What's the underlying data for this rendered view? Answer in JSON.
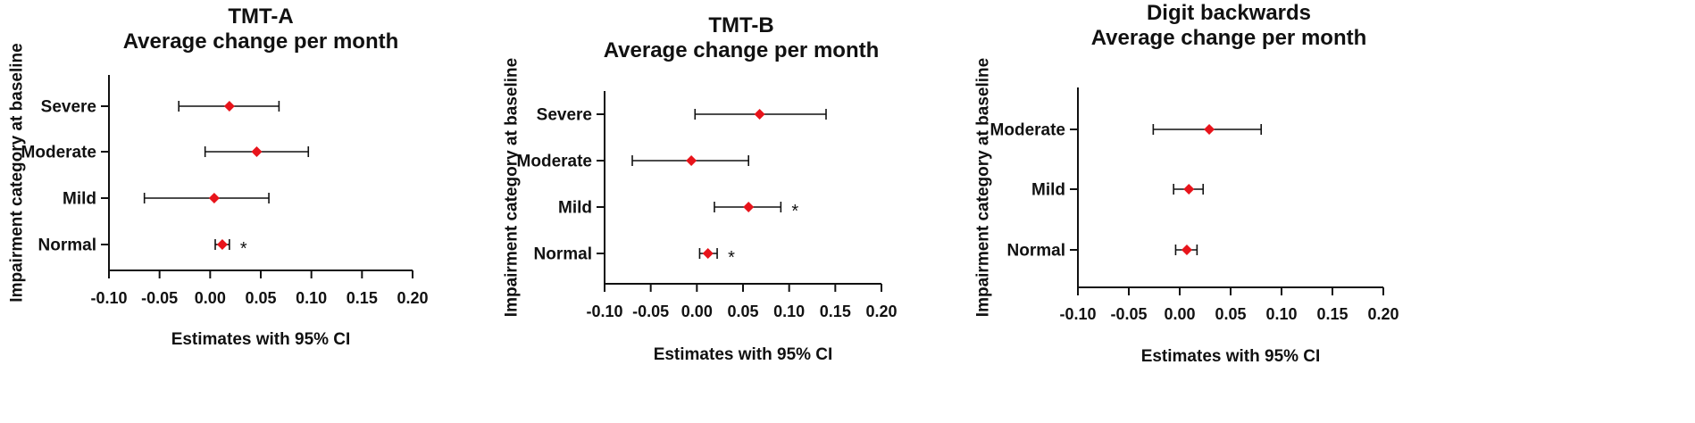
{
  "chart_data": [
    {
      "type": "forest",
      "title_lines": [
        "TMT-A",
        "Average change per month"
      ],
      "xlabel": "Estimates with 95% CI",
      "ylabel": "Impairment category at baseline",
      "xlim": [
        -0.1,
        0.2
      ],
      "xticks": [
        "-0.10",
        "-0.05",
        "0.00",
        "0.05",
        "0.10",
        "0.15",
        "0.20"
      ],
      "categories": [
        "Severe",
        "Moderate",
        "Mild",
        "Normal"
      ],
      "estimates": [
        0.019,
        0.046,
        0.004,
        0.012
      ],
      "ci_low": [
        -0.031,
        -0.005,
        -0.065,
        0.005
      ],
      "ci_high": [
        0.068,
        0.097,
        0.058,
        0.019
      ],
      "significance": [
        "",
        "",
        "",
        "*"
      ]
    },
    {
      "type": "forest",
      "title_lines": [
        "TMT-B",
        "Average change per month"
      ],
      "xlabel": "Estimates with 95% CI",
      "ylabel": "Impairment category at baseline",
      "xlim": [
        -0.1,
        0.2
      ],
      "xticks": [
        "-0.10",
        "-0.05",
        "0.00",
        "0.05",
        "0.10",
        "0.15",
        "0.20"
      ],
      "categories": [
        "Severe",
        "Moderate",
        "Mild",
        "Normal"
      ],
      "estimates": [
        0.068,
        -0.006,
        0.056,
        0.012
      ],
      "ci_low": [
        -0.002,
        -0.07,
        0.019,
        0.003
      ],
      "ci_high": [
        0.14,
        0.056,
        0.091,
        0.022
      ],
      "significance": [
        "",
        "",
        "*",
        "*"
      ]
    },
    {
      "type": "forest",
      "title_lines": [
        "Digit backwards",
        "Average change per month"
      ],
      "xlabel": "Estimates with 95% CI",
      "ylabel": "Impairment category at baseline",
      "xlim": [
        -0.1,
        0.2
      ],
      "xticks": [
        "-0.10",
        "-0.05",
        "0.00",
        "0.05",
        "0.10",
        "0.15",
        "0.20"
      ],
      "categories": [
        "Moderate",
        "Mild",
        "Normal"
      ],
      "estimates": [
        0.029,
        0.009,
        0.007
      ],
      "ci_low": [
        -0.026,
        -0.006,
        -0.004
      ],
      "ci_high": [
        0.08,
        0.023,
        0.017
      ],
      "significance": [
        "",
        "",
        ""
      ]
    }
  ],
  "colors": {
    "marker": "#e8141b",
    "axis": "#111111",
    "text": "#111111"
  }
}
